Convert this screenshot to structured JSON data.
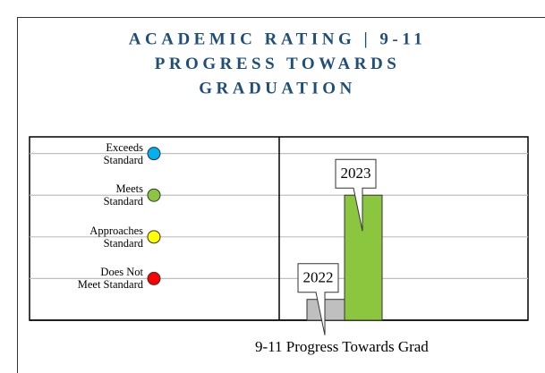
{
  "chart_data": {
    "type": "bar",
    "title": [
      "ACADEMIC RATING | 9-11",
      "PROGRESS TOWARDS",
      "GRADUATION"
    ],
    "categories": [
      "2022",
      "2023"
    ],
    "values": [
      0.5,
      3
    ],
    "colors": [
      "#bfbfbf",
      "#8cc63f"
    ],
    "ylim": [
      0,
      4.4
    ],
    "yticks": [
      {
        "value": 1,
        "label": "Does Not Meet Standard"
      },
      {
        "value": 2,
        "label": "Approaches Standard"
      },
      {
        "value": 3,
        "label": "Meets Standard"
      },
      {
        "value": 4,
        "label": "Exceeds Standard"
      }
    ],
    "ytick_colors": [
      "#ff0000",
      "#ffff00",
      "#8cc63f",
      "#00b0f0"
    ],
    "grid": true,
    "caption": "9-11 Progress Towards Grad"
  }
}
